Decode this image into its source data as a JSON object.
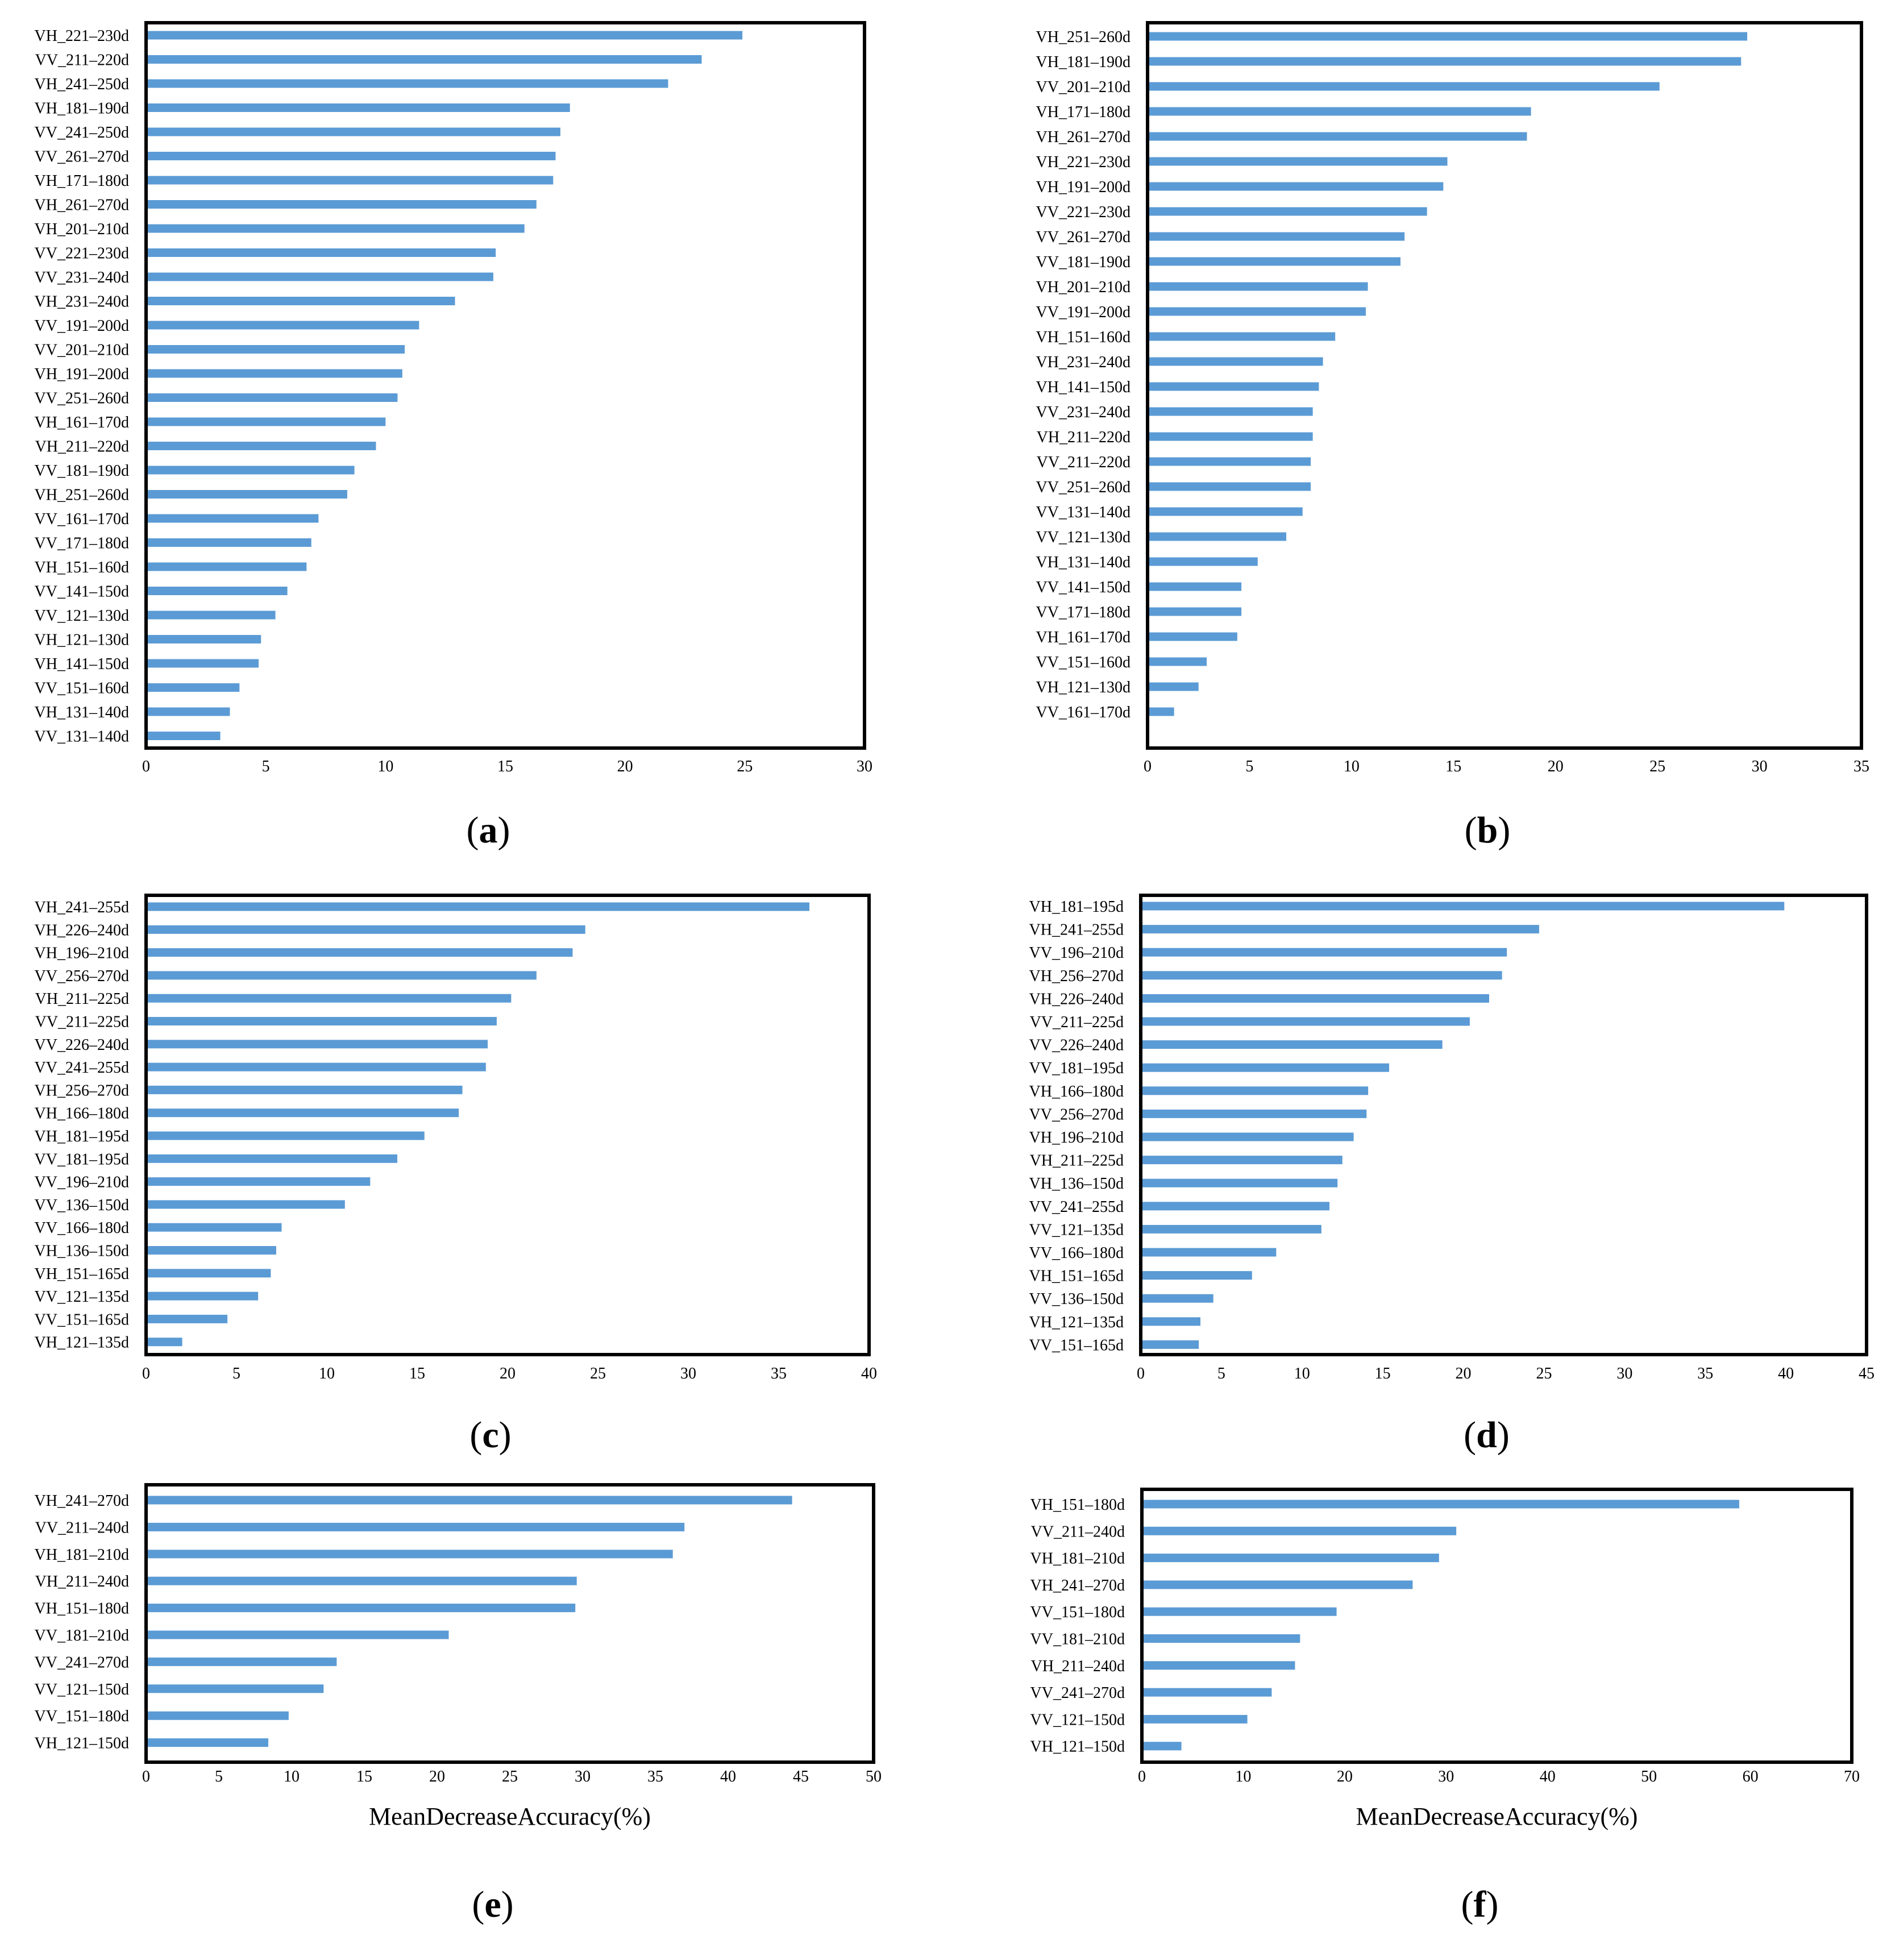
{
  "figure": {
    "bar_color": "#5b9bd5",
    "frame_color": "#000000",
    "text_color": "#000000",
    "background": "#ffffff"
  },
  "chart_data": [
    {
      "id": "a",
      "panel_label": "a",
      "type": "bar",
      "orientation": "horizontal",
      "title": "",
      "xlabel": "",
      "ylabel": "",
      "xlim": [
        0,
        30
      ],
      "xticks": [
        0,
        5,
        10,
        15,
        20,
        25,
        30
      ],
      "grid": false,
      "categories": [
        "VH_221–230d",
        "VV_211–220d",
        "VH_241–250d",
        "VH_181–190d",
        "VV_241–250d",
        "VV_261–270d",
        "VH_171–180d",
        "VH_261–270d",
        "VH_201–210d",
        "VV_221–230d",
        "VV_231–240d",
        "VH_231–240d",
        "VV_191–200d",
        "VV_201–210d",
        "VH_191–200d",
        "VV_251–260d",
        "VH_161–170d",
        "VH_211–220d",
        "VV_181–190d",
        "VH_251–260d",
        "VV_161–170d",
        "VV_171–180d",
        "VH_151–160d",
        "VV_141–150d",
        "VV_121–130d",
        "VH_121–130d",
        "VH_141–150d",
        "VV_151–160d",
        "VH_131–140d",
        "VV_131–140d"
      ],
      "values": [
        24.9,
        23.2,
        21.8,
        17.7,
        17.3,
        17.1,
        17.0,
        16.3,
        15.8,
        14.6,
        14.5,
        12.9,
        11.4,
        10.8,
        10.7,
        10.5,
        10.0,
        9.6,
        8.7,
        8.4,
        7.2,
        6.9,
        6.7,
        5.9,
        5.4,
        4.8,
        4.7,
        3.9,
        3.5,
        3.1
      ]
    },
    {
      "id": "b",
      "panel_label": "b",
      "type": "bar",
      "orientation": "horizontal",
      "title": "",
      "xlabel": "",
      "ylabel": "",
      "xlim": [
        0,
        35
      ],
      "xticks": [
        0,
        5,
        10,
        15,
        20,
        25,
        30,
        35
      ],
      "grid": false,
      "categories": [
        "VH_251–260d",
        "VH_181–190d",
        "VV_201–210d",
        "VH_171–180d",
        "VH_261–270d",
        "VH_221–230d",
        "VH_191–200d",
        "VV_221–230d",
        "VV_261–270d",
        "VV_181–190d",
        "VH_201–210d",
        "VV_191–200d",
        "VH_151–160d",
        "VH_231–240d",
        "VH_141–150d",
        "VV_231–240d",
        "VH_211–220d",
        "VV_211–220d",
        "VV_251–260d",
        "VV_131–140d",
        "VV_121–130d",
        "VH_131–140d",
        "VV_141–150d",
        "VV_171–180d",
        "VH_161–170d",
        "VV_151–160d",
        "VH_121–130d",
        "VV_161–170d"
      ],
      "values": [
        29.4,
        29.1,
        25.1,
        18.8,
        18.6,
        14.7,
        14.5,
        13.7,
        12.6,
        12.4,
        10.8,
        10.7,
        9.2,
        8.6,
        8.4,
        8.1,
        8.1,
        8.0,
        8.0,
        7.6,
        6.8,
        5.4,
        4.6,
        4.6,
        4.4,
        2.9,
        2.5,
        1.3
      ]
    },
    {
      "id": "c",
      "panel_label": "c",
      "type": "bar",
      "orientation": "horizontal",
      "title": "",
      "xlabel": "",
      "ylabel": "",
      "xlim": [
        0,
        40
      ],
      "xticks": [
        0,
        5,
        10,
        15,
        20,
        25,
        30,
        35,
        40
      ],
      "grid": false,
      "categories": [
        "VH_241–255d",
        "VH_226–240d",
        "VH_196–210d",
        "VV_256–270d",
        "VH_211–225d",
        "VV_211–225d",
        "VV_226–240d",
        "VV_241–255d",
        "VH_256–270d",
        "VH_166–180d",
        "VH_181–195d",
        "VV_181–195d",
        "VV_196–210d",
        "VV_136–150d",
        "VV_166–180d",
        "VH_136–150d",
        "VH_151–165d",
        "VV_121–135d",
        "VV_151–165d",
        "VH_121–135d"
      ],
      "values": [
        36.7,
        24.3,
        23.6,
        21.6,
        20.2,
        19.4,
        18.9,
        18.8,
        17.5,
        17.3,
        15.4,
        13.9,
        12.4,
        11.0,
        7.5,
        7.2,
        6.9,
        6.2,
        4.5,
        2.0
      ]
    },
    {
      "id": "d",
      "panel_label": "d",
      "type": "bar",
      "orientation": "horizontal",
      "title": "",
      "xlabel": "",
      "ylabel": "",
      "xlim": [
        0,
        45
      ],
      "xticks": [
        0,
        5,
        10,
        15,
        20,
        25,
        30,
        35,
        40,
        45
      ],
      "grid": false,
      "categories": [
        "VH_181–195d",
        "VH_241–255d",
        "VV_196–210d",
        "VH_256–270d",
        "VH_226–240d",
        "VV_211–225d",
        "VV_226–240d",
        "VV_181–195d",
        "VH_166–180d",
        "VV_256–270d",
        "VH_196–210d",
        "VH_211–225d",
        "VH_136–150d",
        "VV_241–255d",
        "VV_121–135d",
        "VV_166–180d",
        "VH_151–165d",
        "VV_136–150d",
        "VH_121–135d",
        "VV_151–165d"
      ],
      "values": [
        39.9,
        24.7,
        22.7,
        22.4,
        21.6,
        20.4,
        18.7,
        15.4,
        14.1,
        14.0,
        13.2,
        12.5,
        12.2,
        11.7,
        11.2,
        8.4,
        6.9,
        4.5,
        3.7,
        3.6
      ]
    },
    {
      "id": "e",
      "panel_label": "e",
      "type": "bar",
      "orientation": "horizontal",
      "title": "",
      "xlabel": "MeanDecreaseAccuracy(%)",
      "ylabel": "",
      "xlim": [
        0,
        50
      ],
      "xticks": [
        0,
        5,
        10,
        15,
        20,
        25,
        30,
        35,
        40,
        45,
        50
      ],
      "grid": false,
      "categories": [
        "VH_241–270d",
        "VV_211–240d",
        "VH_181–210d",
        "VH_211–240d",
        "VH_151–180d",
        "VV_181–210d",
        "VV_241–270d",
        "VV_121–150d",
        "VV_151–180d",
        "VH_121–150d"
      ],
      "values": [
        44.4,
        37.0,
        36.2,
        29.6,
        29.5,
        20.8,
        13.1,
        12.2,
        9.8,
        8.4
      ]
    },
    {
      "id": "f",
      "panel_label": "f",
      "type": "bar",
      "orientation": "horizontal",
      "title": "",
      "xlabel": "MeanDecreaseAccuracy(%)",
      "ylabel": "",
      "xlim": [
        0,
        70
      ],
      "xticks": [
        0,
        10,
        20,
        30,
        40,
        50,
        60,
        70
      ],
      "grid": false,
      "categories": [
        "VH_151–180d",
        "VV_211–240d",
        "VH_181–210d",
        "VH_241–270d",
        "VV_151–180d",
        "VV_181–210d",
        "VH_211–240d",
        "VV_241–270d",
        "VV_121–150d",
        "VH_121–150d"
      ],
      "values": [
        58.9,
        31.0,
        29.3,
        26.7,
        19.2,
        15.6,
        15.1,
        12.8,
        10.4,
        3.9
      ]
    }
  ]
}
